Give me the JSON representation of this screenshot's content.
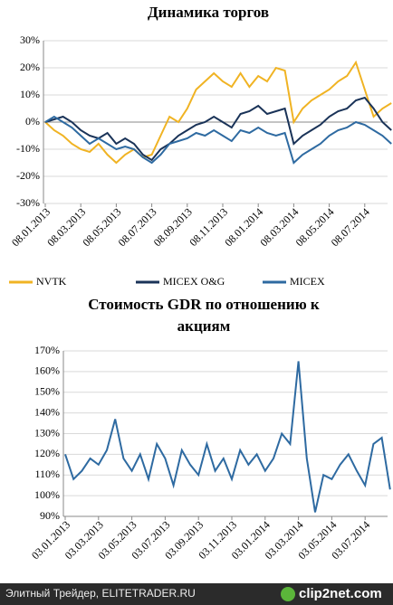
{
  "chart_data": [
    {
      "type": "line",
      "title": "Динамика торгов",
      "categories": [
        "08.01.2013",
        null,
        null,
        null,
        "08.03.2013",
        null,
        null,
        null,
        "08.05.2013",
        null,
        null,
        null,
        "08.07.2013",
        null,
        null,
        null,
        "08.09.2013",
        null,
        null,
        null,
        "08.11.2013",
        null,
        null,
        null,
        "08.01.2014",
        null,
        null,
        null,
        "08.03.2014",
        null,
        null,
        null,
        "08.05.2014",
        null,
        null,
        null,
        "08.07.2014",
        null,
        null,
        null
      ],
      "series": [
        {
          "name": "NVTK",
          "color": "#f0b323",
          "values": [
            0,
            -3,
            -5,
            -8,
            -10,
            -11,
            -8,
            -12,
            -15,
            -12,
            -10,
            -13,
            -12,
            -5,
            2,
            0,
            5,
            12,
            15,
            18,
            15,
            13,
            18,
            13,
            17,
            15,
            20,
            19,
            0,
            5,
            8,
            10,
            12,
            15,
            17,
            22,
            12,
            2,
            5,
            7
          ]
        },
        {
          "name": "MICEX O&G",
          "color": "#1a3358",
          "values": [
            0,
            1,
            2,
            0,
            -3,
            -5,
            -6,
            -4,
            -8,
            -6,
            -8,
            -12,
            -14,
            -10,
            -8,
            -5,
            -3,
            -1,
            0,
            2,
            0,
            -2,
            3,
            4,
            6,
            3,
            4,
            5,
            -8,
            -5,
            -3,
            -1,
            2,
            4,
            5,
            8,
            9,
            5,
            0,
            -3
          ]
        },
        {
          "name": "MICEX",
          "color": "#2e6aa1",
          "values": [
            0,
            2,
            0,
            -2,
            -5,
            -8,
            -6,
            -8,
            -10,
            -9,
            -10,
            -13,
            -15,
            -12,
            -8,
            -7,
            -6,
            -4,
            -5,
            -3,
            -5,
            -7,
            -3,
            -4,
            -2,
            -4,
            -5,
            -4,
            -15,
            -12,
            -10,
            -8,
            -5,
            -3,
            -2,
            0,
            -1,
            -3,
            -5,
            -8
          ]
        }
      ],
      "ylim": [
        -30,
        30
      ],
      "yticks": [
        {
          "value": -30,
          "label": "-30%"
        },
        {
          "value": -20,
          "label": "-20%"
        },
        {
          "value": -10,
          "label": "-10%"
        },
        {
          "value": 0,
          "label": "0%"
        },
        {
          "value": 10,
          "label": "10%"
        },
        {
          "value": 20,
          "label": "20%"
        },
        {
          "value": 30,
          "label": "30%"
        }
      ],
      "grid": true,
      "legend": "bottom"
    },
    {
      "type": "line",
      "title": "Стоимость GDR по отношению к",
      "title_line2": "акциям",
      "categories": [
        "03.01.2013",
        null,
        null,
        null,
        "03.03.2013",
        null,
        null,
        null,
        "03.05.2013",
        null,
        null,
        null,
        "03.07.2013",
        null,
        null,
        null,
        "03.09.2013",
        null,
        null,
        null,
        "03.11.2013",
        null,
        null,
        null,
        "03.01.2014",
        null,
        null,
        null,
        "03.03.2014",
        null,
        null,
        null,
        "03.05.2014",
        null,
        null,
        null,
        "03.07.2014",
        null,
        null,
        null
      ],
      "series": [
        {
          "color": "#2e6aa1",
          "values": [
            120,
            108,
            112,
            118,
            115,
            122,
            137,
            118,
            112,
            120,
            108,
            125,
            118,
            105,
            122,
            115,
            110,
            125,
            112,
            118,
            108,
            122,
            115,
            120,
            112,
            118,
            130,
            125,
            165,
            118,
            92,
            110,
            108,
            115,
            120,
            112,
            105,
            125,
            128,
            103
          ]
        }
      ],
      "ylim": [
        90,
        170
      ],
      "yticks": [
        {
          "value": 90,
          "label": "90%"
        },
        {
          "value": 100,
          "label": "100%"
        },
        {
          "value": 110,
          "label": "110%"
        },
        {
          "value": 120,
          "label": "120%"
        },
        {
          "value": 130,
          "label": "130%"
        },
        {
          "value": 140,
          "label": "140%"
        },
        {
          "value": 150,
          "label": "150%"
        },
        {
          "value": 160,
          "label": "160%"
        },
        {
          "value": 170,
          "label": "170%"
        }
      ],
      "grid": true
    }
  ],
  "footer": {
    "text": "Элитный Трейдер, ELITETRADER.RU",
    "logo": "clip2net.com"
  }
}
